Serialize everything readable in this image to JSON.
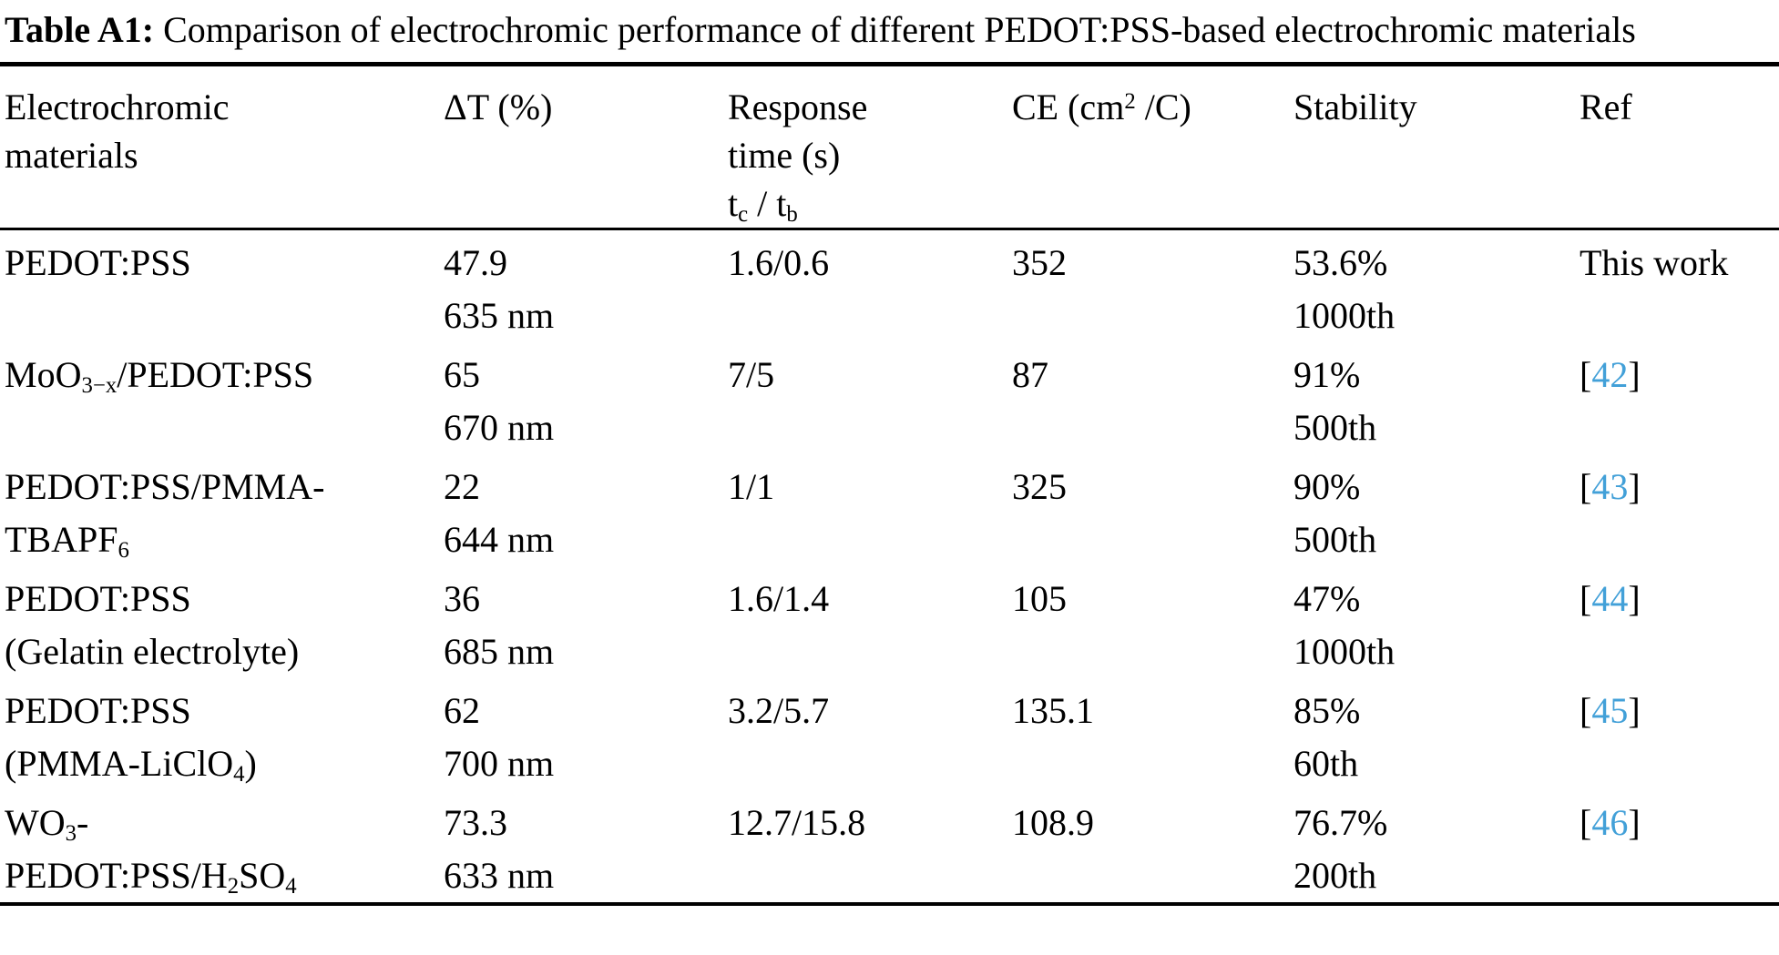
{
  "page": {
    "background_color": "#ffffff",
    "text_color": "#000000",
    "citation_link_color": "#42a0d8"
  },
  "title": {
    "label": "Table A1:",
    "text": "Comparison of electrochromic performance of different PEDOT:PSS-based electrochromic materials"
  },
  "table": {
    "columns": [
      {
        "id": "materials",
        "lines": [
          "Electrochromic",
          "materials"
        ]
      },
      {
        "id": "delta_t",
        "lines": [
          "ΔT (%)"
        ]
      },
      {
        "id": "response",
        "lines": [
          "Response",
          "time (s)",
          "t_{c} / t_{b}"
        ]
      },
      {
        "id": "ce",
        "lines": [
          "CE (cm^{2} /C)"
        ]
      },
      {
        "id": "stability",
        "lines": [
          "Stability"
        ]
      },
      {
        "id": "ref",
        "lines": [
          "Ref"
        ]
      }
    ],
    "rows": [
      {
        "material": [
          "PEDOT:PSS"
        ],
        "delta_t": [
          "47.9",
          "635 nm"
        ],
        "response": [
          "1.6/0.6"
        ],
        "ce": [
          "352"
        ],
        "stability": [
          "53.6%",
          "1000th"
        ],
        "ref": {
          "text": "This work"
        }
      },
      {
        "material": [
          "MoO_{3−x}/PEDOT:PSS"
        ],
        "delta_t": [
          "65",
          "670 nm"
        ],
        "response": [
          "7/5"
        ],
        "ce": [
          "87"
        ],
        "stability": [
          "91%",
          "500th"
        ],
        "ref": {
          "pre": "[",
          "num": "42",
          "post": "]"
        }
      },
      {
        "material": [
          "PEDOT:PSS/PMMA-",
          "TBAPF_{6}"
        ],
        "delta_t": [
          "22",
          "644 nm"
        ],
        "response": [
          "1/1"
        ],
        "ce": [
          "325"
        ],
        "stability": [
          "90%",
          "500th"
        ],
        "ref": {
          "pre": "[",
          "num": "43",
          "post": "]"
        }
      },
      {
        "material": [
          "PEDOT:PSS",
          "(Gelatin electrolyte)"
        ],
        "delta_t": [
          "36",
          "685 nm"
        ],
        "response": [
          "1.6/1.4"
        ],
        "ce": [
          "105"
        ],
        "stability": [
          "47%",
          "1000th"
        ],
        "ref": {
          "pre": "[",
          "num": "44",
          "post": "]"
        }
      },
      {
        "material": [
          "PEDOT:PSS",
          "(PMMA-LiClO_{4})"
        ],
        "delta_t": [
          "62",
          "700 nm"
        ],
        "response": [
          "3.2/5.7"
        ],
        "ce": [
          "135.1"
        ],
        "stability": [
          "85%",
          "60th"
        ],
        "ref": {
          "pre": "[",
          "num": "45",
          "post": "]"
        }
      },
      {
        "material": [
          "WO_{3}-",
          "PEDOT:PSS/H_{2}SO_{4}"
        ],
        "delta_t": [
          "73.3",
          "633 nm"
        ],
        "response": [
          "12.7/15.8"
        ],
        "ce": [
          "108.9"
        ],
        "stability": [
          "76.7%",
          "200th"
        ],
        "ref": {
          "pre": "[",
          "num": "46",
          "post": "]"
        }
      }
    ]
  }
}
